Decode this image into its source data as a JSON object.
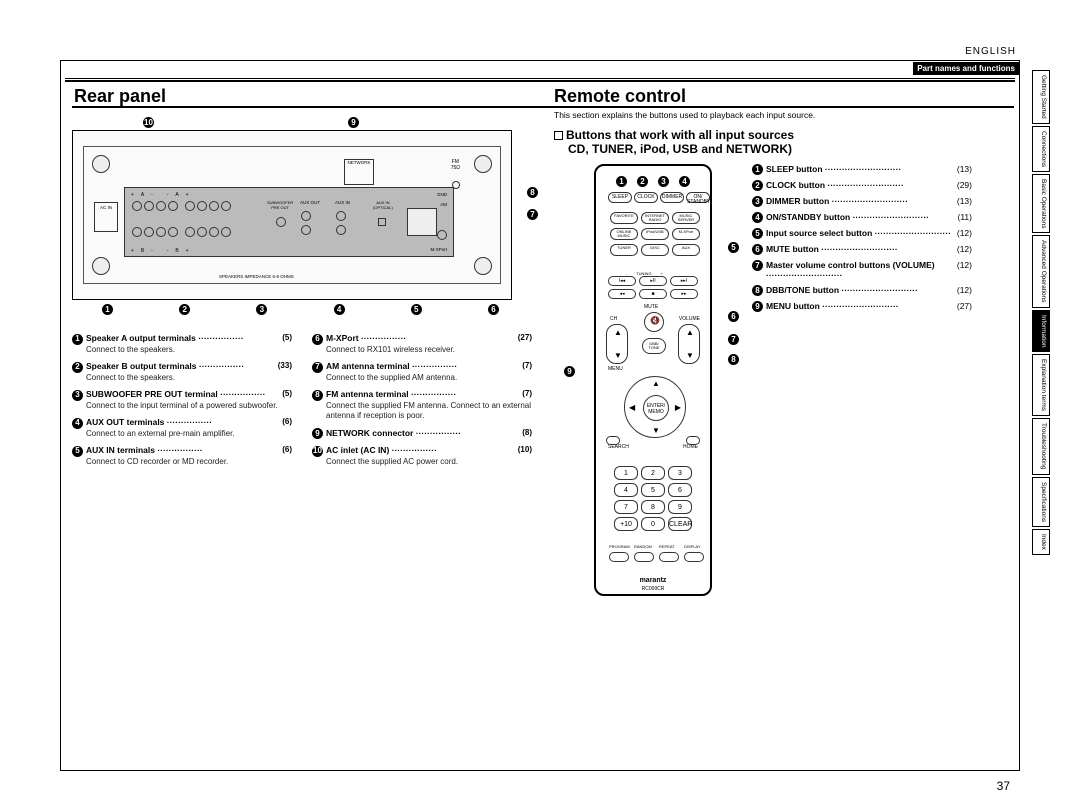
{
  "language": "ENGLISH",
  "section_band": "Part names and functions",
  "h_rear": "Rear panel",
  "h_remote": "Remote control",
  "intro": "This section explains the buttons used to playback each input source.",
  "sub_heading_1": "Buttons that work with all input sources",
  "sub_heading_2": "CD, TUNER, iPod, USB and NETWORK)",
  "page_number": "37",
  "rear_items_left": [
    {
      "n": "1",
      "label": "Speaker A output terminals",
      "pg": "(5)",
      "sub": "Connect to the speakers."
    },
    {
      "n": "2",
      "label": "Speaker B output terminals",
      "pg": "(33)",
      "sub": "Connect to the speakers."
    },
    {
      "n": "3",
      "label": "SUBWOOFER PRE OUT terminal",
      "pg": "(5)",
      "sub": "Connect to the input terminal of a powered subwoofer."
    },
    {
      "n": "4",
      "label": "AUX OUT terminals",
      "pg": "(6)",
      "sub": "Connect to an external pre-main amplifier."
    },
    {
      "n": "5",
      "label": "AUX IN terminals",
      "pg": "(6)",
      "sub": "Connect to CD recorder or MD recorder."
    }
  ],
  "rear_items_right": [
    {
      "n": "6",
      "label": "M-XPort",
      "pg": "(27)",
      "sub": "Connect to RX101 wireless receiver."
    },
    {
      "n": "7",
      "label": "AM antenna terminal",
      "pg": "(7)",
      "sub": "Connect to the supplied AM antenna."
    },
    {
      "n": "8",
      "label": "FM antenna terminal",
      "pg": "(7)",
      "sub": "Connect the supplied FM antenna. Connect to an external antenna if reception is poor."
    },
    {
      "n": "9",
      "label": "NETWORK connector",
      "pg": "(8)",
      "sub": ""
    },
    {
      "n": "10",
      "label": "AC inlet (AC IN)",
      "pg": "(10)",
      "sub": "Connect the supplied AC power cord."
    }
  ],
  "remote_items": [
    {
      "n": "1",
      "label": "SLEEP button",
      "pg": "(13)"
    },
    {
      "n": "2",
      "label": "CLOCK button",
      "pg": "(29)"
    },
    {
      "n": "3",
      "label": "DIMMER button",
      "pg": "(13)"
    },
    {
      "n": "4",
      "label": "ON/STANDBY button",
      "pg": "(11)"
    },
    {
      "n": "5",
      "label": "Input source select button",
      "pg": "(12)"
    },
    {
      "n": "6",
      "label": "MUTE button",
      "pg": "(12)"
    },
    {
      "n": "7",
      "label": "Master volume control buttons (VOLUME)",
      "pg": "(12)"
    },
    {
      "n": "8",
      "label": "DBB/TONE button",
      "pg": "(12)"
    },
    {
      "n": "9",
      "label": "MENU button",
      "pg": "(27)"
    }
  ],
  "side_tabs": [
    {
      "label": "Getting Started",
      "active": false
    },
    {
      "label": "Connections",
      "active": false
    },
    {
      "label": "Basic Operations",
      "active": false
    },
    {
      "label": "Advanced Operations",
      "active": false
    },
    {
      "label": "Information",
      "active": true
    },
    {
      "label": "Explanation terms",
      "active": false
    },
    {
      "label": "Troubleshooting",
      "active": false
    },
    {
      "label": "Specifications",
      "active": false
    },
    {
      "label": "Index",
      "active": false
    }
  ],
  "remote_top_row": [
    "SLEEP",
    "CLOCK",
    "DIMMER",
    "ON/\nSTANDBY"
  ],
  "remote_src_row1": [
    "FAVORITE",
    "INTERNET\nRADIO",
    "MUSIC\nSERVER"
  ],
  "remote_src_row2": [
    "ONLINE\nMUSIC",
    "iPod/USB",
    "M-XPort"
  ],
  "remote_src_row3": [
    "TUNER",
    "DISC",
    "AUX"
  ],
  "remote_numbers": [
    "1",
    "2",
    "3",
    "4",
    "5",
    "6",
    "7",
    "8",
    "9",
    "+10",
    "0",
    "CLEAR"
  ],
  "num_sublabels": [
    ".@",
    "ABC",
    "DEF",
    "GHI",
    "JKL",
    "MNO",
    "PQRS",
    "TUV",
    "WXYZ",
    "",
    "",
    ""
  ],
  "remote_bottom": [
    "PROGRAM",
    "RANDOM",
    "REPEAT",
    "DISPLAY"
  ],
  "brand": "marantz",
  "model": "RC009CR",
  "diagram_labels": {
    "network": "NETWORK",
    "fm": "FM\n75Ω",
    "gnd": "GND",
    "am": "AM",
    "mxport": "M-XPort",
    "acin": "AC IN",
    "speakers": "SPEAKERS IMPEDANCE 6-8 OHMS",
    "sub": "SUBWOOFER\nPRE OUT",
    "auxout": "AUX OUT",
    "auxin": "AUX IN",
    "auxin2": "AUX IN\n(OPTICAL)"
  }
}
